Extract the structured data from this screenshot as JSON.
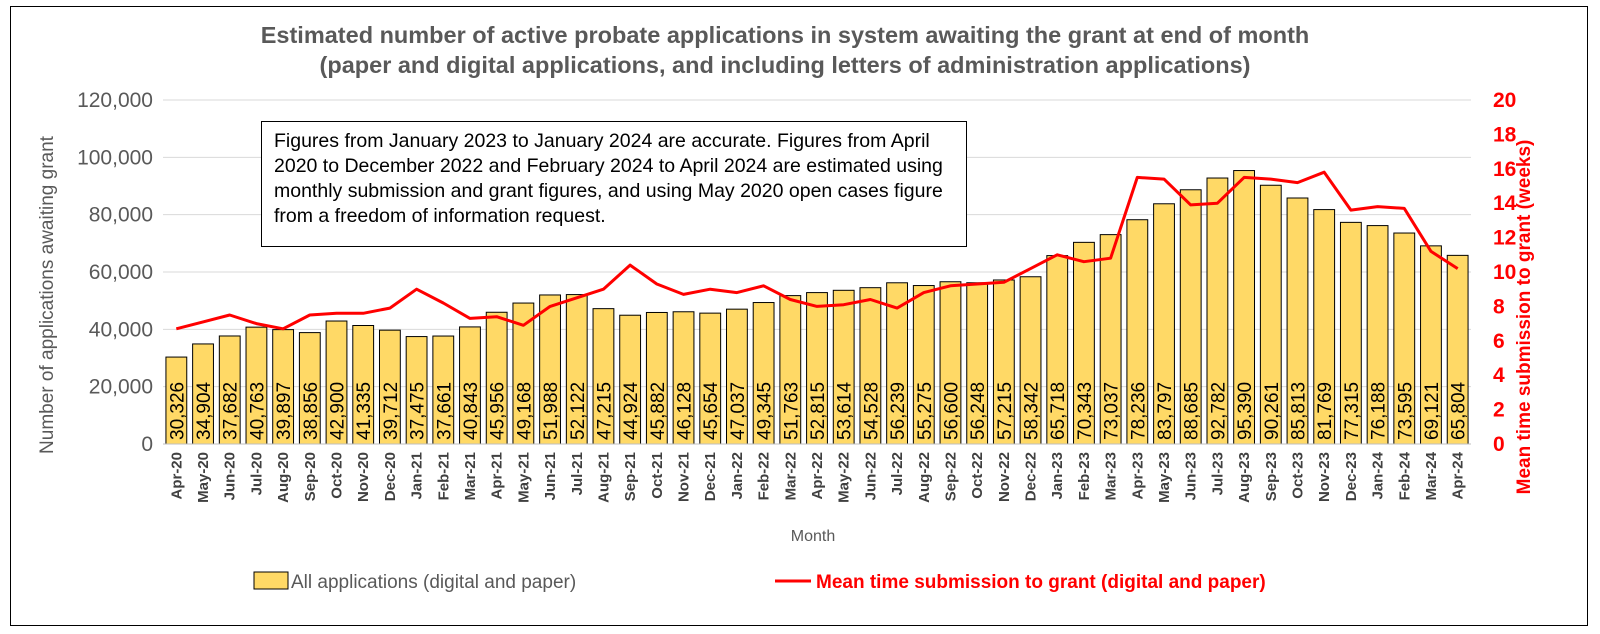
{
  "chart_data": {
    "type": "bar",
    "title_line1": "Estimated number of active probate applications in system awaiting the grant at end of month",
    "title_line2": "(paper and digital applications, and including letters of administration applications)",
    "xlabel": "Month",
    "ylabel": "Number of applications awaiting grant",
    "y2label": "Mean time submission to grant (weeks)",
    "ylim": [
      0,
      120000
    ],
    "y2lim": [
      0,
      20
    ],
    "yticks": [
      "0",
      "20,000",
      "40,000",
      "60,000",
      "80,000",
      "100,000",
      "120,000"
    ],
    "y2ticks": [
      "0",
      "2",
      "4",
      "6",
      "8",
      "10",
      "12",
      "14",
      "16",
      "18",
      "20"
    ],
    "grid": true,
    "legend_position": "bottom",
    "colors": {
      "bar": "#ffd966",
      "line": "#ff0000"
    },
    "annotation": "Figures from January 2023 to January 2024 are accurate. Figures from April 2020 to December 2022 and February 2024 to April 2024 are estimated using monthly submission and grant figures, and using May 2020 open cases figure from a freedom of information request.",
    "categories": [
      "Apr-20",
      "May-20",
      "Jun-20",
      "Jul-20",
      "Aug-20",
      "Sep-20",
      "Oct-20",
      "Nov-20",
      "Dec-20",
      "Jan-21",
      "Feb-21",
      "Mar-21",
      "Apr-21",
      "May-21",
      "Jun-21",
      "Jul-21",
      "Aug-21",
      "Sep-21",
      "Oct-21",
      "Nov-21",
      "Dec-21",
      "Jan-22",
      "Feb-22",
      "Mar-22",
      "Apr-22",
      "May-22",
      "Jun-22",
      "Jul-22",
      "Aug-22",
      "Sep-22",
      "Oct-22",
      "Nov-22",
      "Dec-22",
      "Jan-23",
      "Feb-23",
      "Mar-23",
      "Apr-23",
      "May-23",
      "Jun-23",
      "Jul-23",
      "Aug-23",
      "Sep-23",
      "Oct-23",
      "Nov-23",
      "Dec-23",
      "Jan-24",
      "Feb-24",
      "Mar-24",
      "Apr-24"
    ],
    "series": [
      {
        "name": "All applications (digital and paper)",
        "type": "bar",
        "axis": "left",
        "values": [
          30326,
          34904,
          37682,
          40763,
          39897,
          38856,
          42900,
          41335,
          39712,
          37475,
          37661,
          40843,
          45956,
          49168,
          51988,
          52122,
          47215,
          44924,
          45882,
          46128,
          45654,
          47037,
          49345,
          51763,
          52815,
          53614,
          54528,
          56239,
          55275,
          56600,
          56248,
          57215,
          58342,
          65718,
          70343,
          73037,
          78236,
          83797,
          88685,
          92782,
          95390,
          90261,
          85813,
          81769,
          77315,
          76188,
          73595,
          69121,
          65804
        ],
        "labels": [
          "30,326",
          "34,904",
          "37,682",
          "40,763",
          "39,897",
          "38,856",
          "42,900",
          "41,335",
          "39,712",
          "37,475",
          "37,661",
          "40,843",
          "45,956",
          "49,168",
          "51,988",
          "52,122",
          "47,215",
          "44,924",
          "45,882",
          "46,128",
          "45,654",
          "47,037",
          "49,345",
          "51,763",
          "52,815",
          "53,614",
          "54,528",
          "56,239",
          "55,275",
          "56,600",
          "56,248",
          "57,215",
          "58,342",
          "65,718",
          "70,343",
          "73,037",
          "78,236",
          "83,797",
          "88,685",
          "92,782",
          "95,390",
          "90,261",
          "85,813",
          "81,769",
          "77,315",
          "76,188",
          "73,595",
          "69,121",
          "65,804"
        ]
      },
      {
        "name": "Mean time submission to grant (digital and paper)",
        "type": "line",
        "axis": "right",
        "values": [
          6.7,
          7.1,
          7.5,
          7.0,
          6.7,
          7.5,
          7.6,
          7.6,
          7.9,
          9.0,
          8.2,
          7.3,
          7.4,
          6.9,
          8.0,
          8.5,
          9.0,
          10.4,
          9.3,
          8.7,
          9.0,
          8.8,
          9.2,
          8.4,
          8.0,
          8.1,
          8.4,
          7.9,
          8.8,
          9.2,
          9.3,
          9.4,
          10.2,
          11.0,
          10.6,
          10.8,
          15.5,
          15.4,
          13.9,
          14.0,
          15.5,
          15.4,
          15.2,
          15.8,
          13.6,
          13.8,
          13.7,
          11.2,
          10.2
        ]
      }
    ]
  }
}
